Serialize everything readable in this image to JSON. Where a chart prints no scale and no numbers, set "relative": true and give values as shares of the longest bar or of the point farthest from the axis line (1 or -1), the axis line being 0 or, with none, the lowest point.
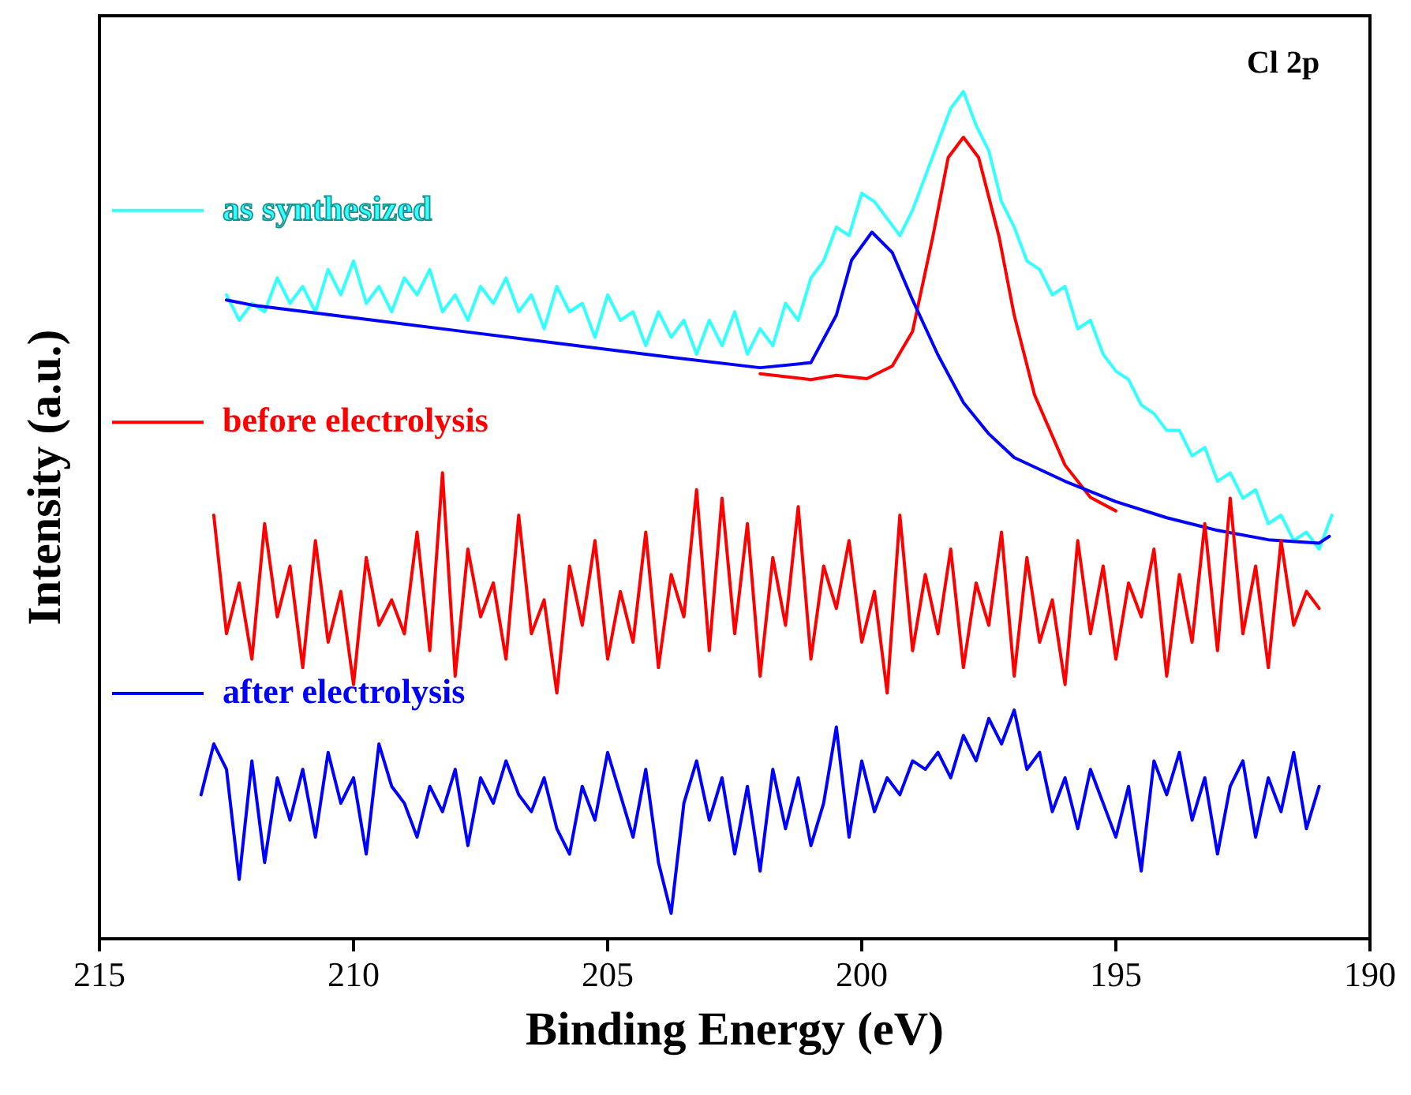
{
  "chart_data": {
    "type": "line",
    "relative": true,
    "xlabel": "Binding Energy (eV)",
    "ylabel": "Intensity (a.u.)",
    "xlim": [
      215,
      190
    ],
    "xticks": [
      215,
      210,
      205,
      200,
      195,
      190
    ],
    "annotations": [
      "Cl 2p"
    ],
    "legend": "left",
    "grid": false,
    "marker": "none",
    "line_style": "solid",
    "series": [
      {
        "name": "as synthesized",
        "color": "#33ffff",
        "x": [
          212.5,
          212.25,
          212,
          211.75,
          211.5,
          211.25,
          211,
          210.75,
          210.5,
          210.25,
          210,
          209.75,
          209.5,
          209.25,
          209,
          208.75,
          208.5,
          208.25,
          208,
          207.75,
          207.5,
          207.25,
          207,
          206.75,
          206.5,
          206.25,
          206,
          205.75,
          205.5,
          205.25,
          205,
          204.75,
          204.5,
          204.25,
          204,
          203.75,
          203.5,
          203.25,
          203,
          202.75,
          202.5,
          202.25,
          202,
          201.75,
          201.5,
          201.25,
          201,
          200.75,
          200.5,
          200.25,
          200,
          199.75,
          199.5,
          199.25,
          199,
          198.75,
          198.5,
          198.25,
          198,
          197.75,
          197.5,
          197.25,
          197,
          196.75,
          196.5,
          196.25,
          196,
          195.75,
          195.5,
          195.25,
          195,
          194.75,
          194.5,
          194.25,
          194,
          193.75,
          193.5,
          193.25,
          193,
          192.75,
          192.5,
          192.25,
          192,
          191.75,
          191.5,
          191.25,
          191,
          190.75
        ],
        "values": [
          0.76,
          0.73,
          0.75,
          0.74,
          0.78,
          0.75,
          0.77,
          0.74,
          0.79,
          0.76,
          0.8,
          0.75,
          0.77,
          0.74,
          0.78,
          0.76,
          0.79,
          0.74,
          0.76,
          0.73,
          0.77,
          0.75,
          0.78,
          0.74,
          0.76,
          0.72,
          0.77,
          0.74,
          0.75,
          0.71,
          0.76,
          0.73,
          0.74,
          0.7,
          0.74,
          0.71,
          0.73,
          0.69,
          0.73,
          0.7,
          0.74,
          0.69,
          0.72,
          0.7,
          0.75,
          0.73,
          0.78,
          0.8,
          0.84,
          0.83,
          0.88,
          0.87,
          0.85,
          0.83,
          0.86,
          0.9,
          0.94,
          0.98,
          1,
          0.96,
          0.93,
          0.87,
          0.84,
          0.8,
          0.79,
          0.76,
          0.77,
          0.72,
          0.73,
          0.69,
          0.67,
          0.66,
          0.63,
          0.62,
          0.6,
          0.6,
          0.57,
          0.58,
          0.54,
          0.55,
          0.52,
          0.53,
          0.49,
          0.5,
          0.47,
          0.48,
          0.46,
          0.5
        ]
      },
      {
        "color": "#ff0000",
        "x": [
          202,
          201,
          200.5,
          199.9,
          199.4,
          199,
          198.6,
          198.3,
          198,
          197.7,
          197.3,
          197,
          196.6,
          196,
          195.5,
          195
        ],
        "values": [
          0.667,
          0.66,
          0.665,
          0.661,
          0.676,
          0.717,
          0.829,
          0.922,
          0.946,
          0.922,
          0.829,
          0.736,
          0.642,
          0.559,
          0.521,
          0.505
        ]
      },
      {
        "color": "#0000ff",
        "x": [
          212.5,
          212,
          210,
          208,
          206,
          204,
          202,
          201,
          200.5,
          200.2,
          199.8,
          199.4,
          199,
          198.5,
          198,
          197.5,
          197,
          196,
          195,
          194,
          193,
          192,
          191,
          190.8
        ],
        "values": [
          0.754,
          0.748,
          0.733,
          0.718,
          0.703,
          0.688,
          0.674,
          0.68,
          0.736,
          0.801,
          0.834,
          0.81,
          0.754,
          0.689,
          0.633,
          0.596,
          0.568,
          0.54,
          0.516,
          0.497,
          0.482,
          0.471,
          0.467,
          0.475
        ]
      },
      {
        "name": "before electrolysis",
        "color": "#ff0000",
        "x": [
          212.75,
          212.5,
          212.25,
          212,
          211.75,
          211.5,
          211.25,
          211,
          210.75,
          210.5,
          210.25,
          210,
          209.75,
          209.5,
          209.25,
          209,
          208.75,
          208.5,
          208.25,
          208,
          207.75,
          207.5,
          207.25,
          207,
          206.75,
          206.5,
          206.25,
          206,
          205.75,
          205.5,
          205.25,
          205,
          204.75,
          204.5,
          204.25,
          204,
          203.75,
          203.5,
          203.25,
          203,
          202.75,
          202.5,
          202.25,
          202,
          201.75,
          201.5,
          201.25,
          201,
          200.75,
          200.5,
          200.25,
          200,
          199.75,
          199.5,
          199.25,
          199,
          198.75,
          198.5,
          198.25,
          198,
          197.75,
          197.5,
          197.25,
          197,
          196.75,
          196.5,
          196.25,
          196,
          195.75,
          195.5,
          195.25,
          195,
          194.75,
          194.5,
          194.25,
          194,
          193.75,
          193.5,
          193.25,
          193,
          192.75,
          192.5,
          192.25,
          192,
          191.75,
          191.5,
          191.25,
          191
        ],
        "values": [
          0.5,
          0.36,
          0.42,
          0.33,
          0.49,
          0.38,
          0.44,
          0.32,
          0.47,
          0.35,
          0.41,
          0.3,
          0.45,
          0.37,
          0.4,
          0.36,
          0.48,
          0.34,
          0.55,
          0.31,
          0.46,
          0.38,
          0.42,
          0.33,
          0.5,
          0.36,
          0.4,
          0.29,
          0.44,
          0.37,
          0.47,
          0.33,
          0.41,
          0.35,
          0.48,
          0.32,
          0.43,
          0.38,
          0.53,
          0.34,
          0.52,
          0.36,
          0.49,
          0.31,
          0.45,
          0.37,
          0.51,
          0.33,
          0.44,
          0.39,
          0.47,
          0.35,
          0.41,
          0.29,
          0.5,
          0.34,
          0.43,
          0.36,
          0.46,
          0.32,
          0.42,
          0.37,
          0.48,
          0.31,
          0.45,
          0.35,
          0.4,
          0.3,
          0.47,
          0.36,
          0.44,
          0.33,
          0.42,
          0.38,
          0.46,
          0.31,
          0.43,
          0.35,
          0.49,
          0.34,
          0.52,
          0.36,
          0.44,
          0.32,
          0.47,
          0.37,
          0.41,
          0.39
        ]
      },
      {
        "name": "after electrolysis",
        "color": "#0000ff",
        "x": [
          213,
          212.75,
          212.5,
          212.25,
          212,
          211.75,
          211.5,
          211.25,
          211,
          210.75,
          210.5,
          210.25,
          210,
          209.75,
          209.5,
          209.25,
          209,
          208.75,
          208.5,
          208.25,
          208,
          207.75,
          207.5,
          207.25,
          207,
          206.75,
          206.5,
          206.25,
          206,
          205.75,
          205.5,
          205.25,
          205,
          204.75,
          204.5,
          204.25,
          204,
          203.75,
          203.5,
          203.25,
          203,
          202.75,
          202.5,
          202.25,
          202,
          201.75,
          201.5,
          201.25,
          201,
          200.75,
          200.5,
          200.25,
          200,
          199.75,
          199.5,
          199.25,
          199,
          198.75,
          198.5,
          198.25,
          198,
          197.75,
          197.5,
          197.25,
          197,
          196.75,
          196.5,
          196.25,
          196,
          195.75,
          195.5,
          195.25,
          195,
          194.75,
          194.5,
          194.25,
          194,
          193.75,
          193.5,
          193.25,
          193,
          192.75,
          192.5,
          192.25,
          192,
          191.75,
          191.5,
          191.25,
          191
        ],
        "values": [
          0.17,
          0.23,
          0.2,
          0.07,
          0.21,
          0.09,
          0.19,
          0.14,
          0.2,
          0.12,
          0.22,
          0.16,
          0.19,
          0.1,
          0.23,
          0.18,
          0.16,
          0.12,
          0.18,
          0.15,
          0.2,
          0.11,
          0.19,
          0.16,
          0.21,
          0.17,
          0.15,
          0.19,
          0.13,
          0.1,
          0.18,
          0.14,
          0.22,
          0.17,
          0.12,
          0.2,
          0.09,
          0.03,
          0.16,
          0.21,
          0.14,
          0.19,
          0.1,
          0.18,
          0.08,
          0.2,
          0.13,
          0.19,
          0.11,
          0.16,
          0.25,
          0.12,
          0.21,
          0.15,
          0.19,
          0.17,
          0.21,
          0.2,
          0.22,
          0.19,
          0.24,
          0.21,
          0.26,
          0.23,
          0.27,
          0.2,
          0.22,
          0.15,
          0.19,
          0.13,
          0.2,
          0.16,
          0.12,
          0.18,
          0.08,
          0.21,
          0.17,
          0.22,
          0.14,
          0.19,
          0.1,
          0.18,
          0.21,
          0.12,
          0.19,
          0.15,
          0.22,
          0.13,
          0.18
        ]
      }
    ]
  }
}
